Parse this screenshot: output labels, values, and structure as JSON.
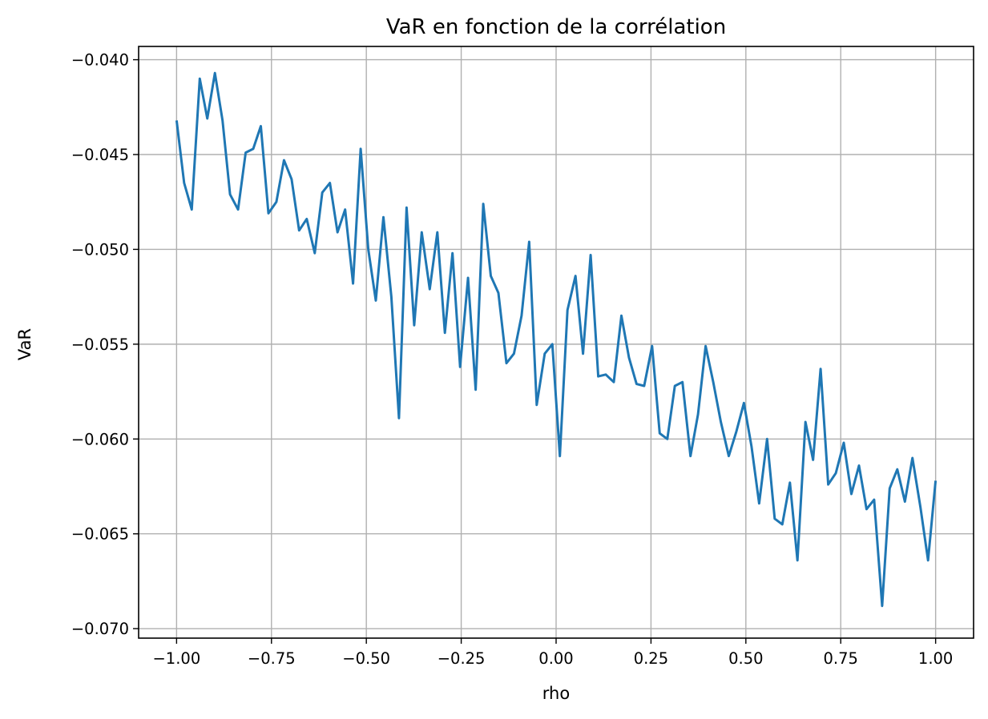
{
  "chart_data": {
    "type": "line",
    "title": "VaR en fonction de la corrélation",
    "xlabel": "rho",
    "ylabel": "VaR",
    "xlim": [
      -1.1,
      1.1
    ],
    "ylim": [
      -0.0705,
      -0.0393
    ],
    "grid": true,
    "xticks": [
      -1.0,
      -0.75,
      -0.5,
      -0.25,
      0.0,
      0.25,
      0.5,
      0.75,
      1.0
    ],
    "xtick_labels": [
      "−1.00",
      "−0.75",
      "−0.50",
      "−0.25",
      "0.00",
      "0.25",
      "0.50",
      "0.75",
      "1.00"
    ],
    "yticks": [
      -0.04,
      -0.045,
      -0.05,
      -0.055,
      -0.06,
      -0.065,
      -0.07
    ],
    "ytick_labels": [
      "−0.040",
      "−0.045",
      "−0.050",
      "−0.055",
      "−0.060",
      "−0.065",
      "−0.070"
    ],
    "series": [
      {
        "color": "#1f77b4",
        "x": [
          -1.0,
          -0.98,
          -0.96,
          -0.939,
          -0.919,
          -0.899,
          -0.879,
          -0.859,
          -0.838,
          -0.818,
          -0.798,
          -0.778,
          -0.758,
          -0.737,
          -0.717,
          -0.697,
          -0.677,
          -0.657,
          -0.636,
          -0.616,
          -0.596,
          -0.576,
          -0.556,
          -0.535,
          -0.515,
          -0.495,
          -0.475,
          -0.455,
          -0.434,
          -0.414,
          -0.394,
          -0.374,
          -0.354,
          -0.333,
          -0.313,
          -0.293,
          -0.273,
          -0.253,
          -0.232,
          -0.212,
          -0.192,
          -0.172,
          -0.152,
          -0.131,
          -0.111,
          -0.091,
          -0.071,
          -0.051,
          -0.03,
          -0.01,
          0.01,
          0.03,
          0.051,
          0.071,
          0.091,
          0.111,
          0.131,
          0.152,
          0.172,
          0.192,
          0.212,
          0.232,
          0.253,
          0.273,
          0.293,
          0.313,
          0.333,
          0.354,
          0.374,
          0.394,
          0.414,
          0.434,
          0.455,
          0.475,
          0.495,
          0.515,
          0.535,
          0.556,
          0.576,
          0.596,
          0.616,
          0.636,
          0.657,
          0.677,
          0.697,
          0.717,
          0.737,
          0.758,
          0.778,
          0.798,
          0.818,
          0.838,
          0.859,
          0.879,
          0.899,
          0.919,
          0.939,
          0.96,
          0.98,
          1.0
        ],
        "y": [
          -0.0432,
          -0.0465,
          -0.0479,
          -0.041,
          -0.0431,
          -0.0407,
          -0.0432,
          -0.0471,
          -0.0479,
          -0.0449,
          -0.0447,
          -0.0435,
          -0.0481,
          -0.0475,
          -0.0453,
          -0.0463,
          -0.049,
          -0.0484,
          -0.0502,
          -0.047,
          -0.0465,
          -0.0491,
          -0.0479,
          -0.0518,
          -0.0447,
          -0.05,
          -0.0527,
          -0.0483,
          -0.0525,
          -0.0589,
          -0.0478,
          -0.054,
          -0.0491,
          -0.0521,
          -0.0491,
          -0.0544,
          -0.0502,
          -0.0562,
          -0.0515,
          -0.0574,
          -0.0476,
          -0.0514,
          -0.0523,
          -0.056,
          -0.0555,
          -0.0535,
          -0.0496,
          -0.0582,
          -0.0555,
          -0.055,
          -0.0609,
          -0.0532,
          -0.0514,
          -0.0555,
          -0.0503,
          -0.0567,
          -0.0566,
          -0.057,
          -0.0535,
          -0.0557,
          -0.0571,
          -0.0572,
          -0.0551,
          -0.0597,
          -0.06,
          -0.0572,
          -0.057,
          -0.0609,
          -0.0587,
          -0.0551,
          -0.057,
          -0.0591,
          -0.0609,
          -0.0596,
          -0.0581,
          -0.0604,
          -0.0634,
          -0.06,
          -0.0642,
          -0.0645,
          -0.0623,
          -0.0664,
          -0.0591,
          -0.0611,
          -0.0563,
          -0.0624,
          -0.0618,
          -0.0602,
          -0.0629,
          -0.0614,
          -0.0637,
          -0.0632,
          -0.0688,
          -0.0626,
          -0.0616,
          -0.0633,
          -0.061,
          -0.0636,
          -0.0664,
          -0.0622
        ]
      }
    ]
  }
}
